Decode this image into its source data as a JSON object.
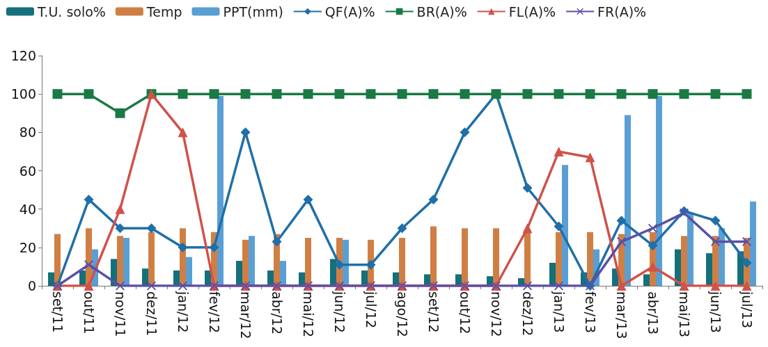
{
  "chart_data": {
    "type": "bar",
    "categories": [
      "set/11",
      "out/11",
      "nov/11",
      "dez/11",
      "jan/12",
      "fev/12",
      "mar/12",
      "abr/12",
      "mai/12",
      "jun/12",
      "jul/12",
      "ago/12",
      "set/12",
      "out/12",
      "nov/12",
      "dez/12",
      "jan/13",
      "fev/13",
      "mar/13",
      "abr/13",
      "mai/13",
      "jun/13",
      "jul/13"
    ],
    "series": [
      {
        "name": "T.U. solo%",
        "color": "#14707a",
        "values": [
          7,
          8,
          14,
          9,
          8,
          8,
          13,
          8,
          7,
          14,
          8,
          7,
          6,
          6,
          5,
          4,
          12,
          7,
          9,
          6,
          19,
          17,
          18
        ]
      },
      {
        "name": "Temp",
        "color": "#d07f44",
        "values": [
          27,
          30,
          26,
          28,
          30,
          28,
          24,
          27,
          25,
          25,
          24,
          25,
          31,
          30,
          30,
          28,
          28,
          28,
          27,
          28,
          26,
          26,
          25
        ]
      },
      {
        "name": "PPT(mm)",
        "color": "#5a9fd4",
        "values": [
          0,
          19,
          25,
          0,
          15,
          99,
          26,
          13,
          0,
          24,
          0,
          0,
          0,
          0,
          0,
          0,
          63,
          19,
          89,
          99,
          38,
          30,
          44
        ]
      },
      {
        "name": "QF(A)%",
        "type": "line",
        "marker": "diamond",
        "color": "#1f6fa8",
        "values": [
          0,
          45,
          30,
          30,
          20,
          20,
          80,
          23,
          45,
          11,
          11,
          30,
          45,
          80,
          100,
          51,
          31,
          0,
          34,
          21,
          39,
          34,
          12
        ]
      },
      {
        "name": "BR(A)%",
        "type": "line",
        "marker": "square",
        "color": "#1a7a45",
        "values": [
          100,
          100,
          90,
          100,
          100,
          100,
          100,
          100,
          100,
          100,
          100,
          100,
          100,
          100,
          100,
          100,
          100,
          100,
          100,
          100,
          100,
          100,
          100
        ]
      },
      {
        "name": "FL(A)%",
        "type": "line",
        "marker": "triangle",
        "color": "#d0524a",
        "values": [
          0,
          0,
          40,
          100,
          80,
          0,
          0,
          0,
          0,
          0,
          0,
          0,
          0,
          0,
          0,
          30,
          70,
          67,
          0,
          10,
          0,
          0,
          0
        ]
      },
      {
        "name": "FR(A)%",
        "type": "line",
        "marker": "cross",
        "color": "#5a4fa8",
        "values": [
          0,
          11,
          0,
          0,
          0,
          0,
          0,
          0,
          0,
          0,
          0,
          0,
          0,
          0,
          0,
          0,
          0,
          0,
          23,
          30,
          38,
          23,
          23
        ]
      }
    ],
    "ylim": [
      0,
      120
    ],
    "yticks": [
      0,
      20,
      40,
      60,
      80,
      100,
      120
    ],
    "grid": false,
    "legend": "top left"
  }
}
